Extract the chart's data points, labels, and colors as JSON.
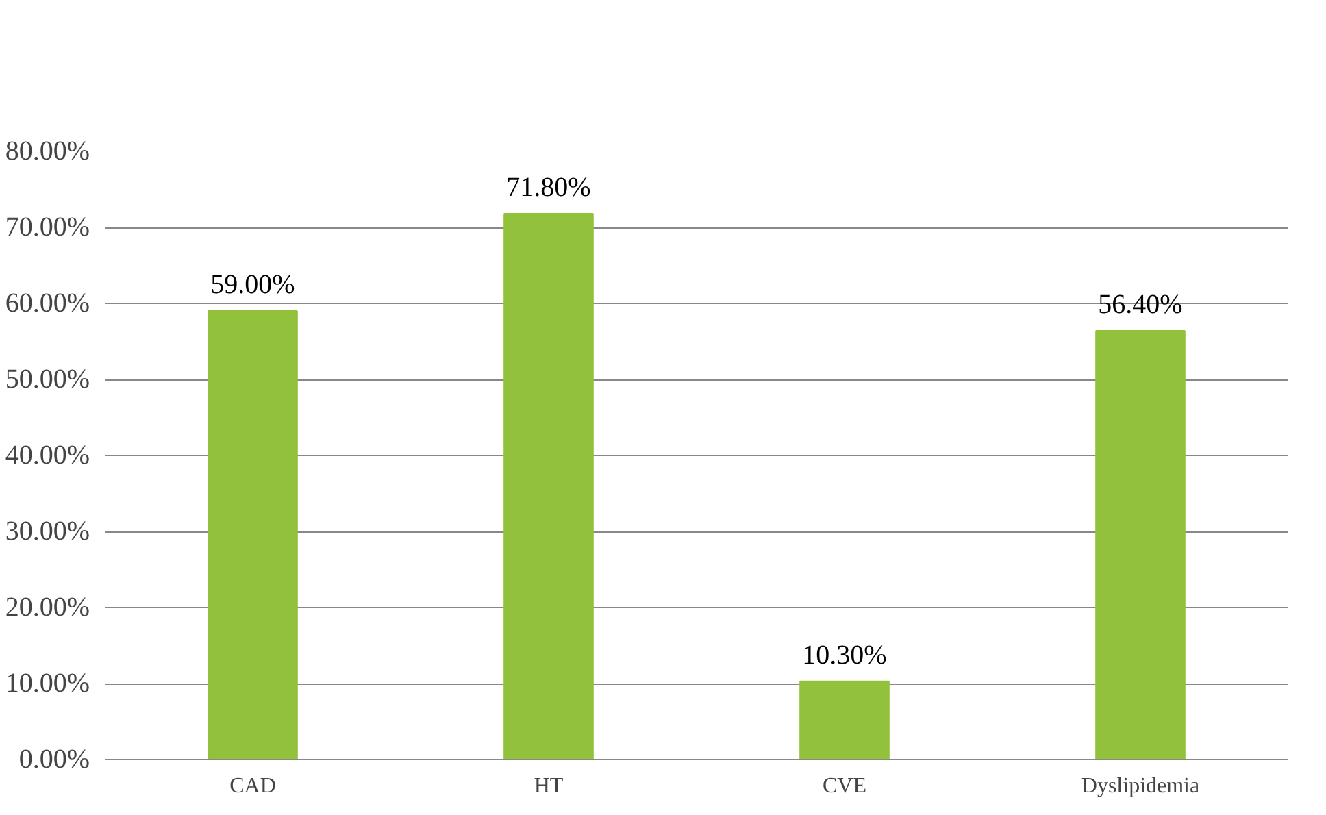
{
  "chart_data": {
    "type": "bar",
    "categories": [
      "CAD",
      "HT",
      "CVE",
      "Dyslipidemia"
    ],
    "values": [
      59.0,
      71.8,
      10.3,
      56.4
    ],
    "value_labels": [
      "59.00%",
      "71.80%",
      "10.30%",
      "56.40%"
    ],
    "color": "#92c13c",
    "ylim": [
      0,
      80
    ],
    "yticks": [
      {
        "value": 0,
        "label": "0.00%"
      },
      {
        "value": 10,
        "label": "10.00%"
      },
      {
        "value": 20,
        "label": "20.00%"
      },
      {
        "value": 30,
        "label": "30.00%"
      },
      {
        "value": 40,
        "label": "40.00%"
      },
      {
        "value": 50,
        "label": "50.00%"
      },
      {
        "value": 60,
        "label": "60.00%"
      },
      {
        "value": 70,
        "label": "70.00%"
      },
      {
        "value": 80,
        "label": "80.00%"
      }
    ],
    "grid": "y"
  }
}
